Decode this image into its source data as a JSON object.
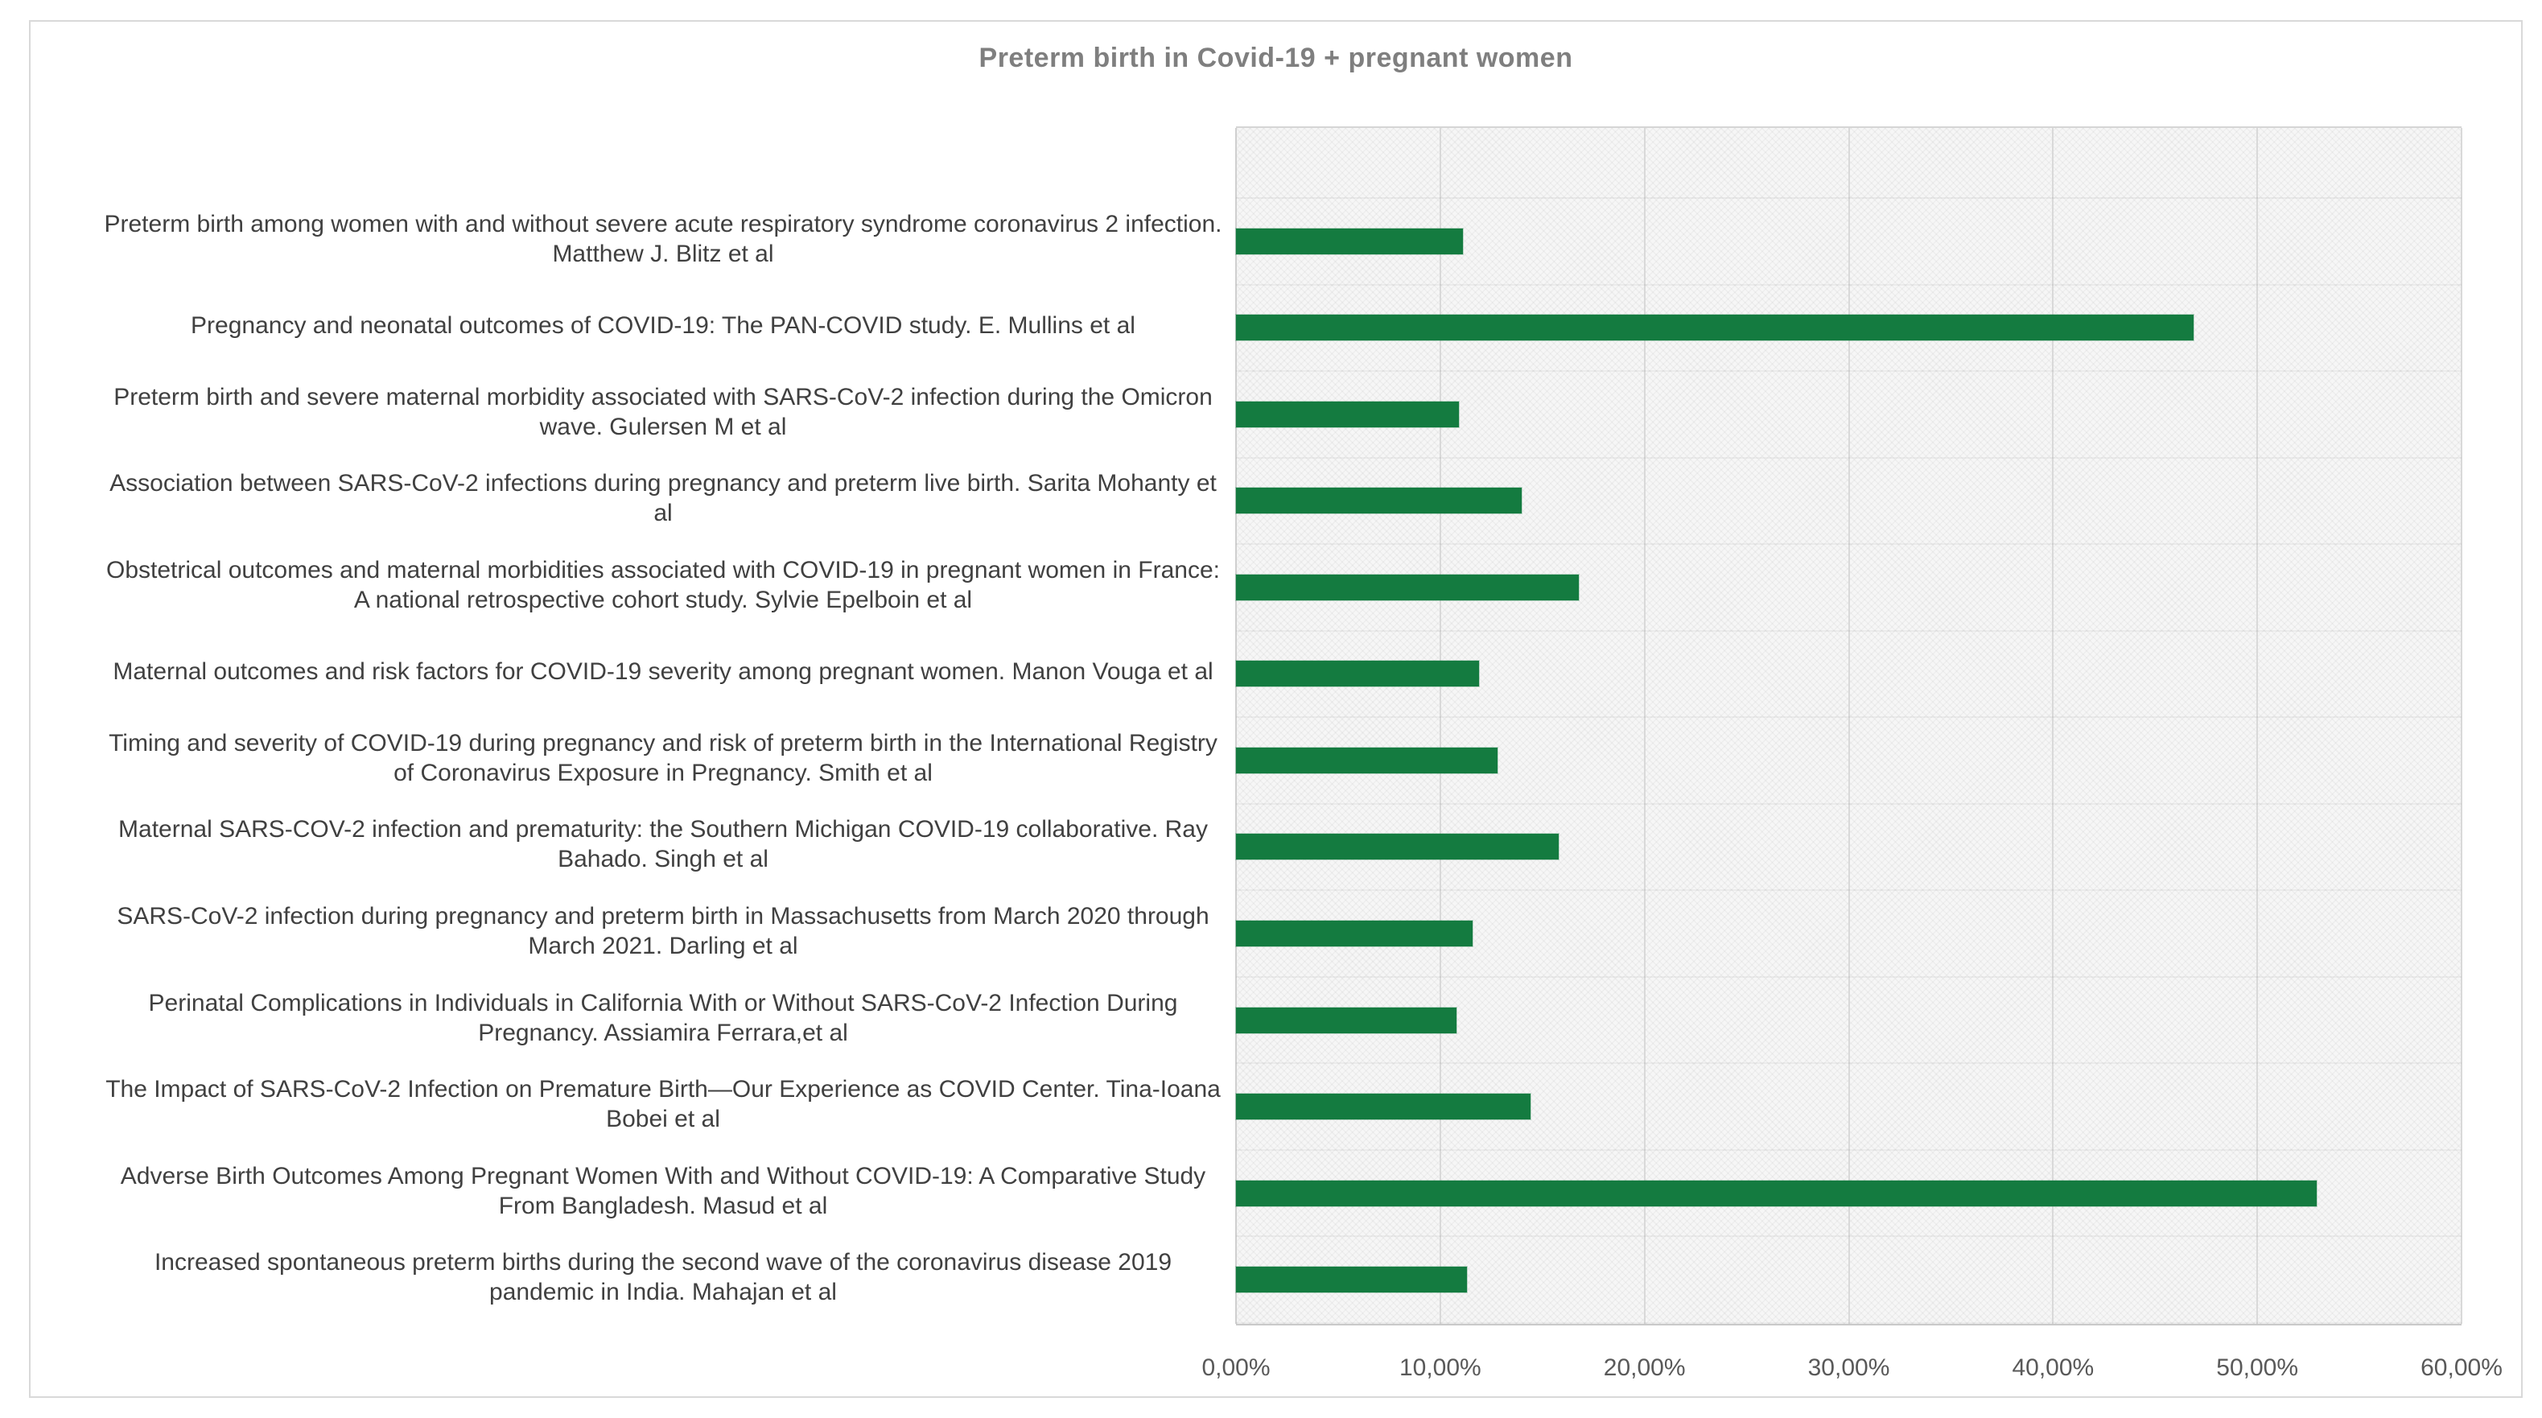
{
  "chart_data": {
    "type": "bar",
    "orientation": "horizontal",
    "title": "Preterm birth in Covid-19 + pregnant women",
    "categories": [
      "Preterm birth among women with and without severe acute respiratory syndrome coronavirus 2 infection. Matthew J. Blitz et al",
      "Pregnancy and neonatal outcomes of COVID-19: The PAN-COVID study. E. Mullins et al",
      "Preterm birth and severe maternal morbidity associated with SARS-CoV-2 infection during the Omicron wave. Gulersen M et al",
      "Association between SARS-CoV-2 infections during pregnancy and preterm live birth. Sarita Mohanty et al",
      "Obstetrical outcomes and maternal morbidities associated with COVID-19 in pregnant women in France: A national retrospective cohort study. Sylvie Epelboin et al",
      "Maternal outcomes and risk factors for COVID-19 severity among pregnant women. Manon Vouga et al",
      "Timing and severity of COVID-19 during pregnancy and risk of preterm birth in the International Registry of Coronavirus Exposure in Pregnancy.  Smith et al",
      "Maternal SARS-COV-2 infection and prematurity: the Southern Michigan COVID-19 collaborative. Ray Bahado. Singh et al",
      "SARS-CoV-2 infection during pregnancy and preterm birth in Massachusetts from March 2020 through March 2021. Darling et al",
      "Perinatal Complications in Individuals in California With or Without SARS-CoV-2 Infection During Pregnancy. Assiamira Ferrara,et al",
      "The Impact of SARS-CoV-2 Infection on Premature Birth—Our Experience as COVID Center. Tina-Ioana Bobei et al",
      "Adverse Birth Outcomes Among Pregnant Women With and Without COVID-19: A Comparative Study From Bangladesh. Masud et al",
      "Increased spontaneous preterm births during the second wave of the coronavirus disease 2019 pandemic in India. Mahajan et al"
    ],
    "values": [
      11.1,
      46.9,
      10.9,
      14.0,
      16.8,
      11.9,
      12.8,
      15.8,
      11.6,
      10.8,
      14.4,
      52.9,
      11.3
    ],
    "values_unit": "percent",
    "x_axis": {
      "min": 0,
      "max": 60,
      "ticks": [
        "0,00%",
        "10,00%",
        "20,00%",
        "30,00%",
        "40,00%",
        "50,00%",
        "60,00%"
      ]
    },
    "bar_color": "#147b40",
    "title_color": "#7f7f7f",
    "grid": true,
    "legend": false
  }
}
